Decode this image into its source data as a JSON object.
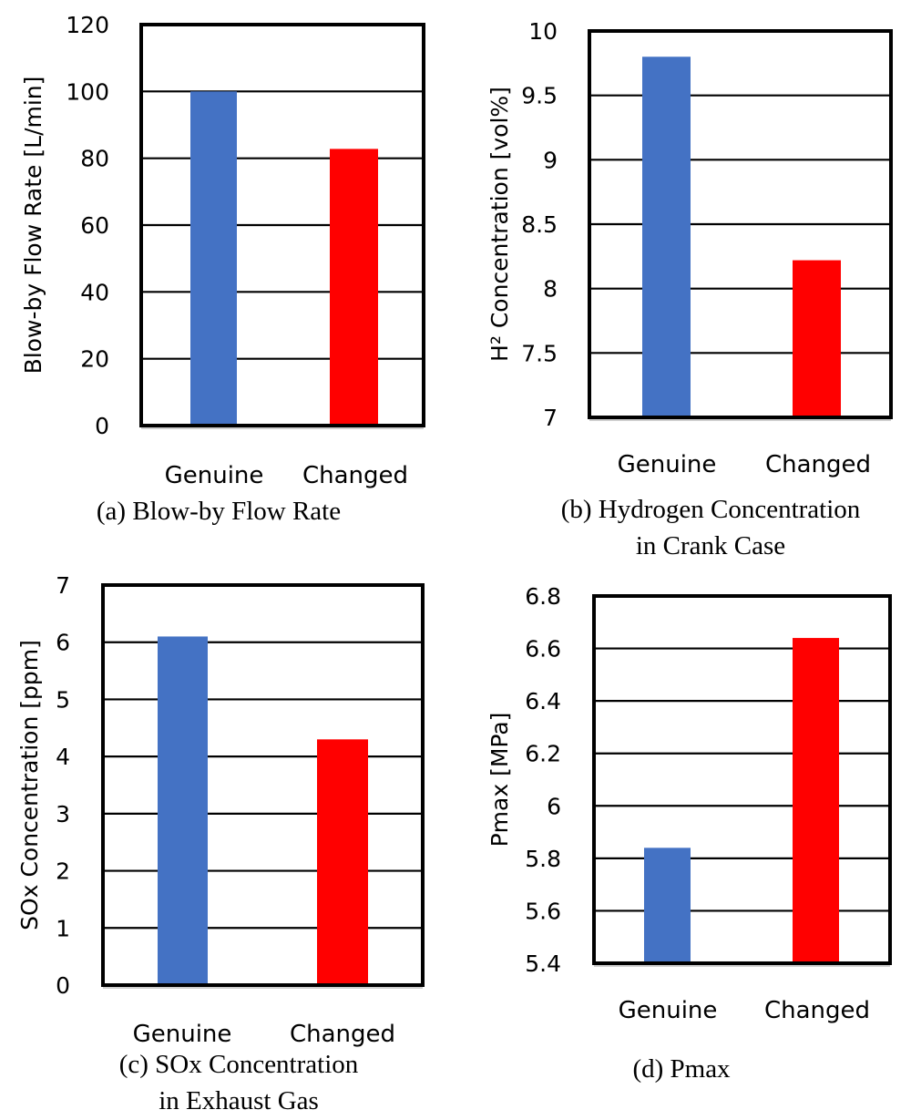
{
  "figure": {
    "colors": {
      "genuine": "#4472C4",
      "changed": "#FF0000",
      "grid": "#000000",
      "frame": "#000000"
    }
  },
  "chart_data": [
    {
      "id": "a",
      "type": "bar",
      "title": "",
      "caption": [
        "(a) Blow-by Flow Rate"
      ],
      "categories": [
        "Genuine",
        "Changed"
      ],
      "values": [
        100,
        82.8
      ],
      "xlabel": "",
      "ylabel": "Blow-by Flow Rate [L/min]",
      "ylabel_sup": "",
      "ylim": [
        0,
        120
      ],
      "yticks": [
        0,
        20,
        40,
        60,
        80,
        100,
        120
      ],
      "ytick_labels": [
        "0",
        "20",
        "40",
        "60",
        "80",
        "100",
        "120"
      ],
      "grid": true,
      "legend": "none"
    },
    {
      "id": "b",
      "type": "bar",
      "title": "",
      "caption": [
        "(b) Hydrogen Concentration",
        "in Crank Case"
      ],
      "categories": [
        "Genuine",
        "Changed"
      ],
      "values": [
        9.8,
        8.22
      ],
      "xlabel": "",
      "ylabel": "H² Concentration [vol%]",
      "ylim": [
        7,
        10
      ],
      "yticks": [
        7,
        7.5,
        8,
        8.5,
        9,
        9.5,
        10
      ],
      "ytick_labels": [
        "7",
        "7.5",
        "8",
        "8.5",
        "9",
        "9.5",
        "10"
      ],
      "grid": true,
      "legend": "none"
    },
    {
      "id": "c",
      "type": "bar",
      "title": "",
      "caption": [
        "(c) SOx Concentration",
        "in Exhaust Gas"
      ],
      "categories": [
        "Genuine",
        "Changed"
      ],
      "values": [
        6.1,
        4.3
      ],
      "xlabel": "",
      "ylabel": "SOx Concentration [ppm]",
      "ylim": [
        0,
        7
      ],
      "yticks": [
        0,
        1,
        2,
        3,
        4,
        5,
        6,
        7
      ],
      "ytick_labels": [
        "0",
        "1",
        "2",
        "3",
        "4",
        "5",
        "6",
        "7"
      ],
      "grid": true,
      "legend": "none"
    },
    {
      "id": "d",
      "type": "bar",
      "title": "",
      "caption": [
        "(d) Pmax"
      ],
      "categories": [
        "Genuine",
        "Changed"
      ],
      "values": [
        5.84,
        6.64
      ],
      "xlabel": "",
      "ylabel": "Pmax [MPa]",
      "ylim": [
        5.4,
        6.8
      ],
      "yticks": [
        5.4,
        5.6,
        5.8,
        6.0,
        6.2,
        6.4,
        6.6,
        6.8
      ],
      "ytick_labels": [
        "5.4",
        "5.6",
        "5.8",
        "6",
        "6.2",
        "6.4",
        "6.6",
        "6.8"
      ],
      "grid": true,
      "legend": "none"
    }
  ]
}
